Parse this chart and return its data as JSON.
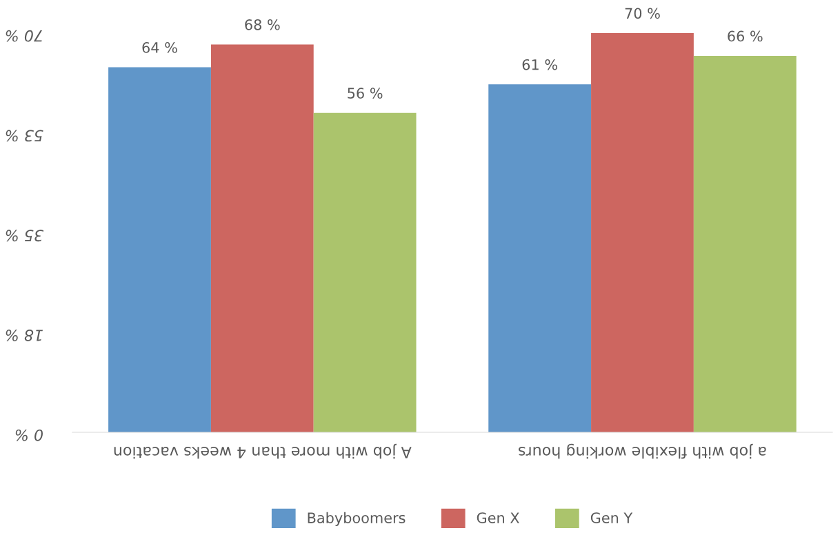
{
  "chart_data": {
    "type": "bar",
    "categories": [
      "A job with more than 4 weeks vacation",
      "a job with flexible working hours"
    ],
    "series": [
      {
        "name": "Babyboomers",
        "color": "#6096c9",
        "values": [
          64,
          61
        ],
        "value_labels": [
          "64 %",
          "61 %"
        ]
      },
      {
        "name": "Gen X",
        "color": "#cd6660",
        "values": [
          68,
          70
        ],
        "value_labels": [
          "68 %",
          "70 %"
        ]
      },
      {
        "name": "Gen Y",
        "color": "#abc46c",
        "values": [
          56,
          66
        ],
        "value_labels": [
          "56 %",
          "66 %"
        ]
      }
    ],
    "ylim": [
      0,
      70
    ],
    "yticks": [
      {
        "value": 0,
        "label": "0 %"
      },
      {
        "value": 17.5,
        "label": "18 %"
      },
      {
        "value": 35,
        "label": "35 %"
      },
      {
        "value": 52.5,
        "label": "53 %"
      },
      {
        "value": 70,
        "label": "70 %"
      }
    ],
    "grid": false,
    "legend": "bottom"
  }
}
